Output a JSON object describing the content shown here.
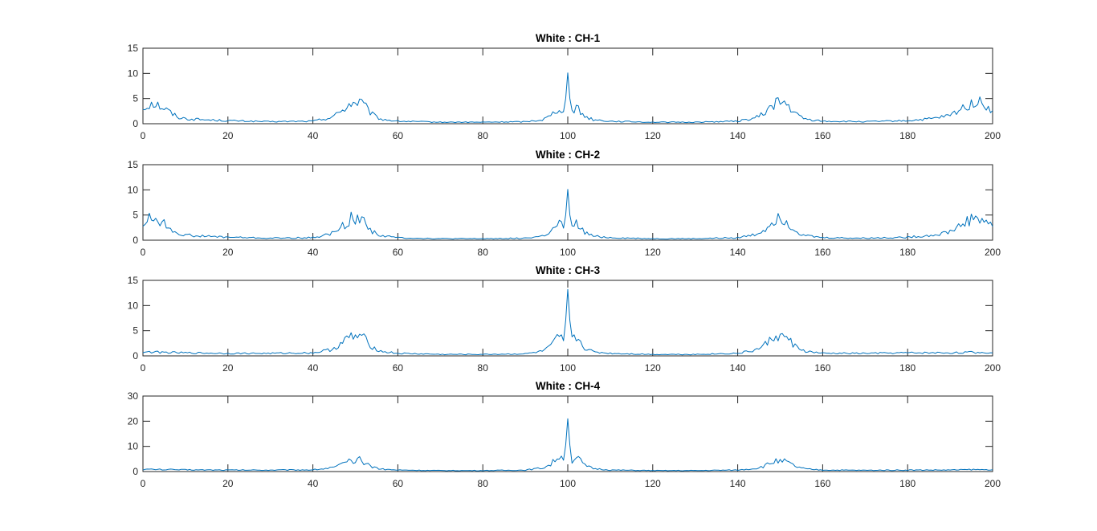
{
  "chart_data": [
    {
      "type": "line",
      "title": "White : CH-1",
      "xlim": [
        0,
        200
      ],
      "ylim": [
        0,
        15
      ],
      "xticks": [
        0,
        20,
        40,
        60,
        80,
        100,
        120,
        140,
        160,
        180,
        200
      ],
      "yticks": [
        0,
        5,
        10,
        15
      ],
      "grid": false,
      "color": "#0072bd",
      "x": [
        0,
        2,
        4,
        6,
        8,
        10,
        14,
        20,
        30,
        40,
        44,
        46,
        48,
        49,
        50,
        51,
        52,
        54,
        56,
        60,
        70,
        80,
        90,
        94,
        96,
        98,
        99,
        99.5,
        100,
        100.5,
        101,
        102,
        104,
        106,
        110,
        120,
        130,
        140,
        144,
        146,
        148,
        149,
        150,
        151,
        152,
        154,
        156,
        160,
        170,
        180,
        186,
        190,
        192,
        194,
        196,
        198,
        200
      ],
      "values": [
        3.0,
        4.3,
        3.6,
        2.5,
        1.4,
        1.0,
        0.8,
        0.6,
        0.4,
        0.5,
        1.2,
        2.0,
        3.5,
        4.2,
        4.0,
        4.5,
        3.6,
        1.8,
        0.9,
        0.5,
        0.3,
        0.3,
        0.4,
        0.8,
        1.6,
        3.4,
        2.4,
        5.0,
        10.1,
        5.0,
        2.4,
        3.2,
        1.5,
        0.8,
        0.5,
        0.3,
        0.3,
        0.5,
        1.1,
        1.9,
        3.5,
        4.5,
        3.9,
        4.2,
        3.3,
        1.7,
        0.9,
        0.5,
        0.4,
        0.6,
        1.0,
        1.6,
        2.6,
        3.6,
        4.4,
        3.8,
        2.6
      ]
    },
    {
      "type": "line",
      "title": "White : CH-2",
      "xlim": [
        0,
        200
      ],
      "ylim": [
        0,
        15
      ],
      "xticks": [
        0,
        20,
        40,
        60,
        80,
        100,
        120,
        140,
        160,
        180,
        200
      ],
      "yticks": [
        0,
        5,
        10,
        15
      ],
      "grid": false,
      "color": "#0072bd",
      "x": [
        0,
        2,
        4,
        6,
        8,
        10,
        14,
        20,
        30,
        40,
        44,
        46,
        48,
        49,
        50,
        51,
        52,
        54,
        56,
        60,
        70,
        80,
        90,
        94,
        96,
        98,
        99,
        99.5,
        100,
        100.5,
        101,
        102,
        104,
        106,
        110,
        120,
        130,
        140,
        144,
        146,
        148,
        149,
        150,
        151,
        152,
        154,
        156,
        160,
        170,
        180,
        186,
        190,
        192,
        194,
        196,
        198,
        200
      ],
      "values": [
        3.2,
        4.6,
        3.8,
        2.6,
        1.5,
        1.0,
        0.8,
        0.6,
        0.4,
        0.5,
        1.2,
        2.0,
        3.6,
        4.3,
        4.0,
        4.5,
        3.7,
        1.8,
        0.9,
        0.5,
        0.3,
        0.3,
        0.4,
        0.8,
        1.6,
        3.4,
        2.4,
        5.0,
        10.1,
        5.0,
        2.4,
        3.2,
        1.5,
        0.8,
        0.5,
        0.3,
        0.3,
        0.5,
        1.1,
        1.9,
        3.5,
        4.4,
        3.8,
        4.2,
        3.3,
        1.7,
        0.9,
        0.5,
        0.4,
        0.6,
        1.0,
        1.7,
        2.8,
        3.8,
        4.6,
        4.0,
        2.7
      ]
    },
    {
      "type": "line",
      "title": "White : CH-3",
      "xlim": [
        0,
        200
      ],
      "ylim": [
        0,
        15
      ],
      "xticks": [
        0,
        20,
        40,
        60,
        80,
        100,
        120,
        140,
        160,
        180,
        200
      ],
      "yticks": [
        0,
        5,
        10,
        15
      ],
      "grid": false,
      "color": "#0072bd",
      "x": [
        0,
        5,
        10,
        20,
        30,
        40,
        44,
        46,
        48,
        49,
        50,
        51,
        52,
        54,
        56,
        60,
        70,
        80,
        90,
        94,
        96,
        98,
        99,
        99.5,
        100,
        100.5,
        101,
        102,
        104,
        106,
        110,
        120,
        130,
        140,
        144,
        146,
        148,
        149,
        150,
        151,
        152,
        154,
        156,
        160,
        170,
        180,
        190,
        195,
        200
      ],
      "values": [
        0.8,
        0.7,
        0.6,
        0.5,
        0.5,
        0.6,
        1.2,
        2.0,
        3.3,
        3.9,
        3.6,
        4.2,
        3.4,
        1.8,
        0.9,
        0.5,
        0.3,
        0.3,
        0.4,
        0.9,
        1.8,
        4.0,
        3.0,
        7.0,
        13.2,
        7.0,
        3.0,
        3.8,
        1.6,
        0.8,
        0.5,
        0.3,
        0.3,
        0.5,
        1.1,
        1.9,
        3.4,
        4.2,
        3.6,
        3.9,
        3.2,
        1.6,
        0.9,
        0.5,
        0.5,
        0.6,
        0.6,
        0.7,
        0.6
      ]
    },
    {
      "type": "line",
      "title": "White : CH-4",
      "xlim": [
        0,
        200
      ],
      "ylim": [
        0,
        30
      ],
      "xticks": [
        0,
        20,
        40,
        60,
        80,
        100,
        120,
        140,
        160,
        180,
        200
      ],
      "yticks": [
        0,
        10,
        20,
        30
      ],
      "grid": false,
      "color": "#0072bd",
      "x": [
        0,
        5,
        10,
        20,
        30,
        40,
        44,
        46,
        48,
        49,
        50,
        51,
        52,
        54,
        56,
        60,
        70,
        80,
        90,
        94,
        96,
        98,
        99,
        99.5,
        100,
        100.5,
        101,
        102,
        104,
        106,
        110,
        120,
        130,
        140,
        144,
        146,
        148,
        149,
        150,
        151,
        152,
        154,
        156,
        160,
        170,
        180,
        190,
        195,
        200
      ],
      "values": [
        0.9,
        0.8,
        0.7,
        0.6,
        0.6,
        0.7,
        1.4,
        2.2,
        3.6,
        4.2,
        3.8,
        4.6,
        3.6,
        2.0,
        1.0,
        0.6,
        0.4,
        0.4,
        0.6,
        1.4,
        2.8,
        6.5,
        4.5,
        10.5,
        21.0,
        10.5,
        4.5,
        6.0,
        2.4,
        1.2,
        0.6,
        0.4,
        0.4,
        0.6,
        1.2,
        2.0,
        3.5,
        4.4,
        3.7,
        4.1,
        3.3,
        1.8,
        1.0,
        0.6,
        0.5,
        0.6,
        0.6,
        0.8,
        0.7
      ]
    }
  ]
}
